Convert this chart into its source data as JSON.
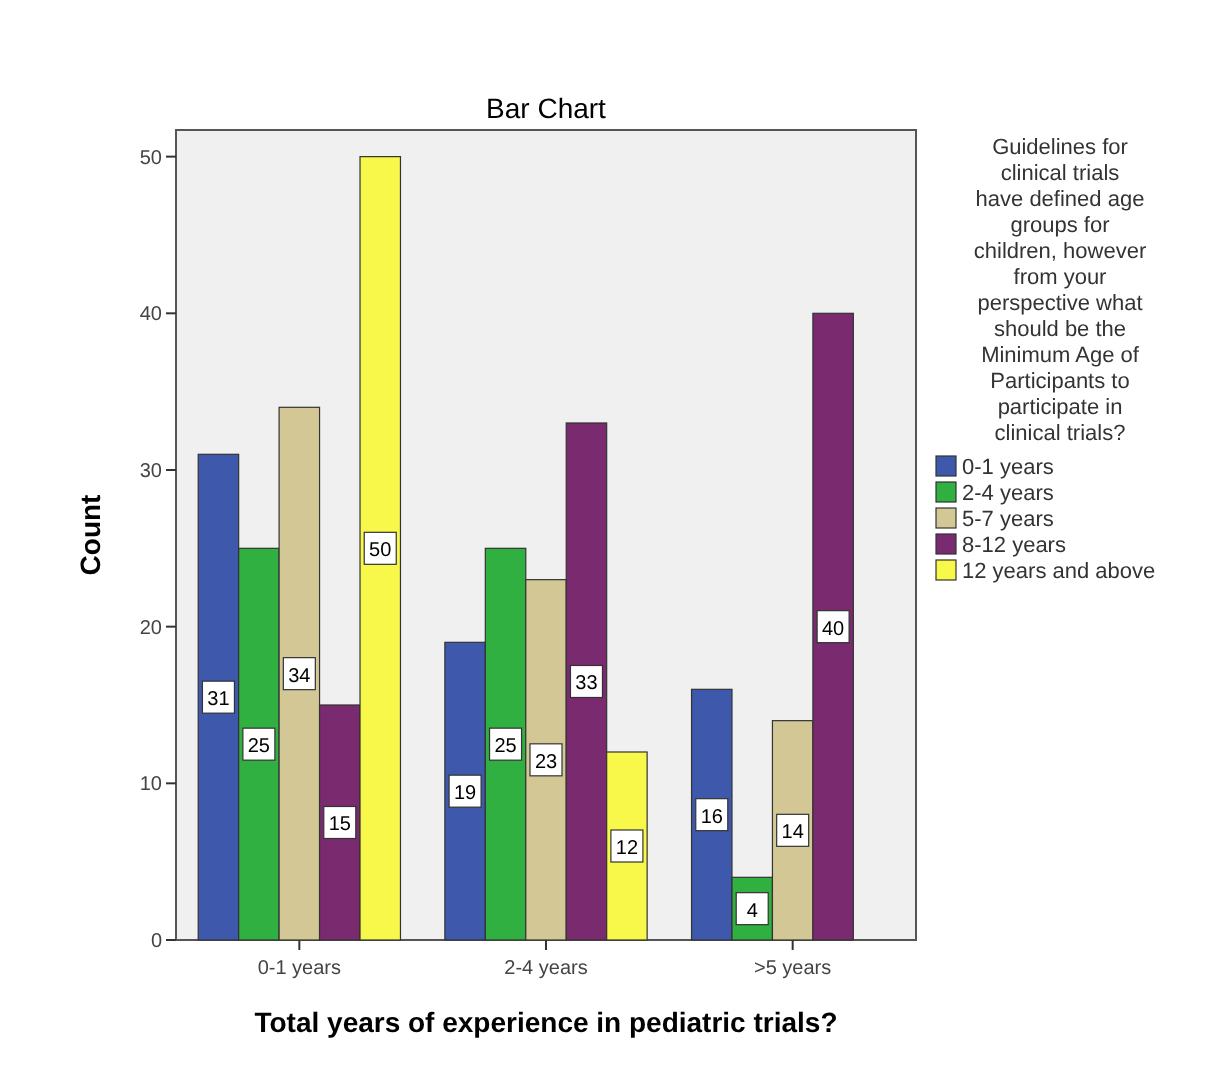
{
  "chart_data": {
    "type": "bar",
    "title": "Bar Chart",
    "xlabel": "Total years of experience in pediatric trials?",
    "ylabel": "Count",
    "legend_title": "Guidelines for clinical trials have defined age groups for children, however from your perspective what should be the Minimum Age of Participants to participate in clinical trials?",
    "categories": [
      "0-1 years",
      "2-4 years",
      ">5 years"
    ],
    "series": [
      {
        "name": "0-1 years",
        "color": "#3e58ac",
        "values": [
          31,
          19,
          16
        ]
      },
      {
        "name": "2-4 years",
        "color": "#2fb040",
        "values": [
          25,
          25,
          4
        ]
      },
      {
        "name": "5-7 years",
        "color": "#d2c795",
        "values": [
          34,
          23,
          14
        ]
      },
      {
        "name": "8-12 years",
        "color": "#7a2a6f",
        "values": [
          15,
          33,
          40
        ]
      },
      {
        "name": "12 years and above",
        "color": "#f8f84a",
        "values": [
          50,
          12,
          null
        ]
      }
    ],
    "ylim": [
      0,
      51.7
    ],
    "yticks": [
      0,
      10,
      20,
      30,
      40,
      50
    ],
    "data_labels": true,
    "legend": "right",
    "grid": false
  }
}
